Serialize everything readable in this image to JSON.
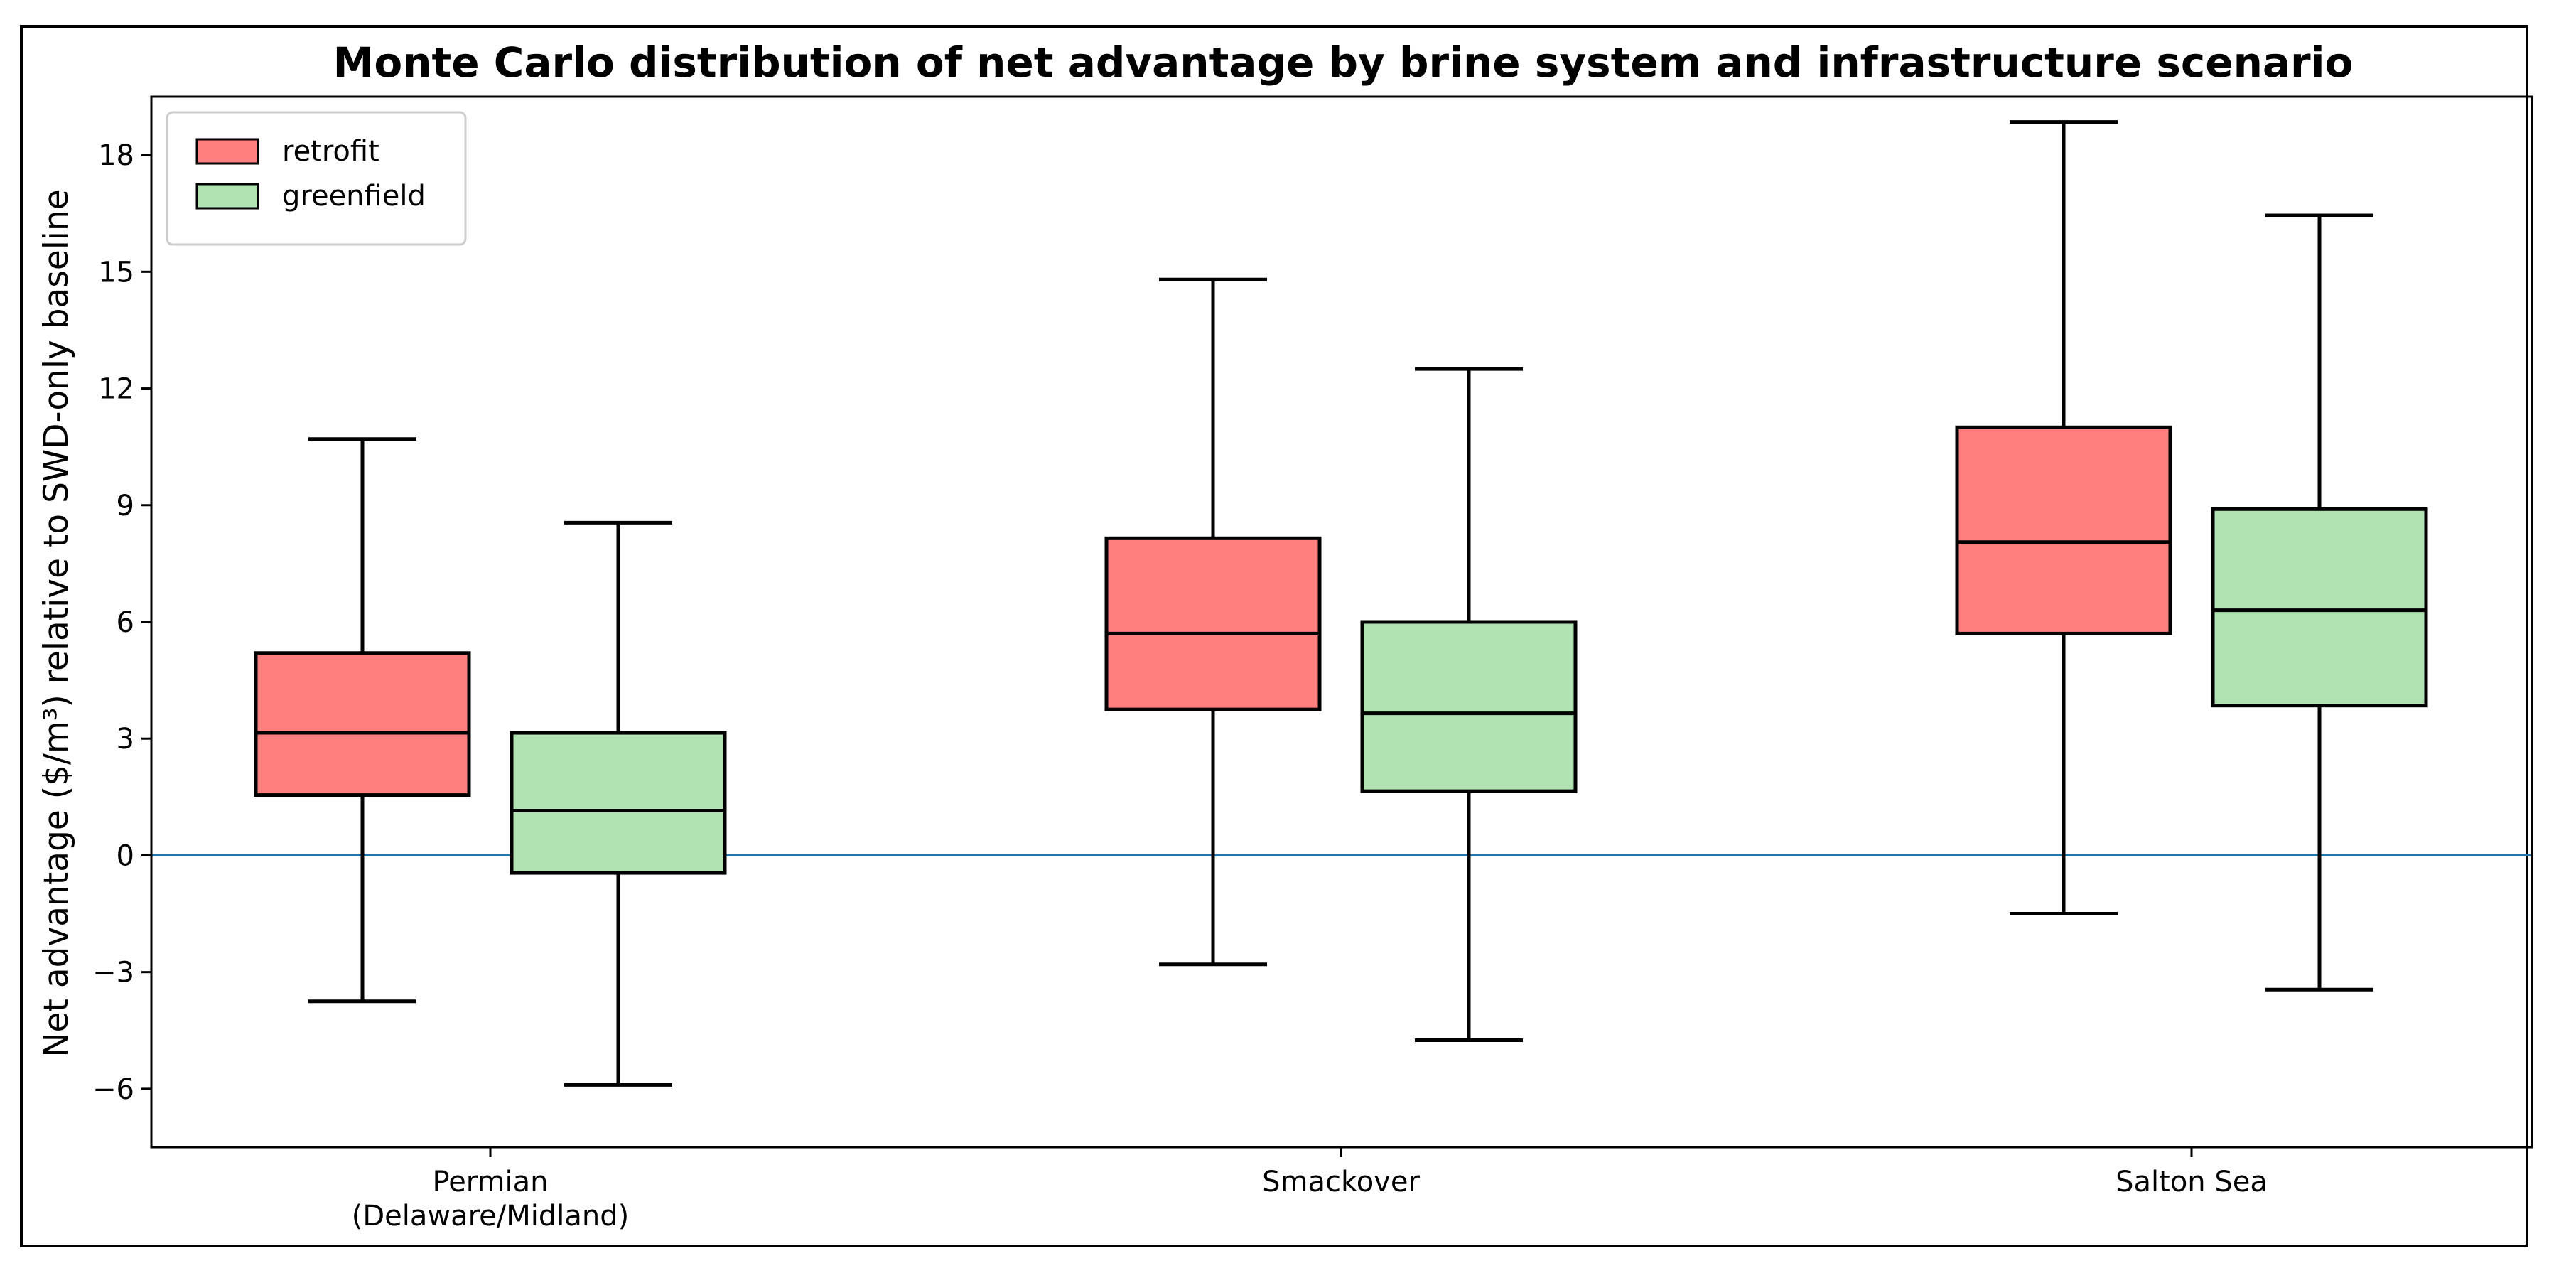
{
  "chart_data": {
    "type": "box",
    "title": "Monte Carlo distribution of net advantage by brine system and infrastructure scenario",
    "xlabel": "",
    "ylabel": "Net advantage ($/m³) relative to SWD-only baseline",
    "ylim": [
      -7.5,
      19.5
    ],
    "yticks": [
      -6,
      -3,
      0,
      3,
      6,
      9,
      12,
      15,
      18
    ],
    "ytick_labels": [
      "−6",
      "−3",
      "0",
      "3",
      "6",
      "9",
      "12",
      "15",
      "18"
    ],
    "categories": [
      [
        "Permian",
        "(Delaware/Midland)"
      ],
      [
        "Smackover"
      ],
      [
        "Salton Sea"
      ]
    ],
    "reference_line": {
      "y": 0,
      "color": "#1f77b4"
    },
    "legend_position": "top-left",
    "grid": false,
    "series": [
      {
        "name": "retrofit",
        "color": "#ff7f7f",
        "boxes": [
          {
            "whislo": -3.75,
            "q1": 1.55,
            "med": 3.15,
            "q3": 5.2,
            "whishi": 10.7
          },
          {
            "whislo": -2.8,
            "q1": 3.75,
            "med": 5.7,
            "q3": 8.15,
            "whishi": 14.8
          },
          {
            "whislo": -1.5,
            "q1": 5.7,
            "med": 8.05,
            "q3": 11.0,
            "whishi": 18.85
          }
        ]
      },
      {
        "name": "greenfield",
        "color": "#b1e2b1",
        "boxes": [
          {
            "whislo": -5.9,
            "q1": -0.45,
            "med": 1.15,
            "q3": 3.15,
            "whishi": 8.55
          },
          {
            "whislo": -4.75,
            "q1": 1.65,
            "med": 3.65,
            "q3": 6.0,
            "whishi": 12.5
          },
          {
            "whislo": -3.45,
            "q1": 3.85,
            "med": 6.3,
            "q3": 8.9,
            "whishi": 16.45
          }
        ]
      }
    ]
  }
}
